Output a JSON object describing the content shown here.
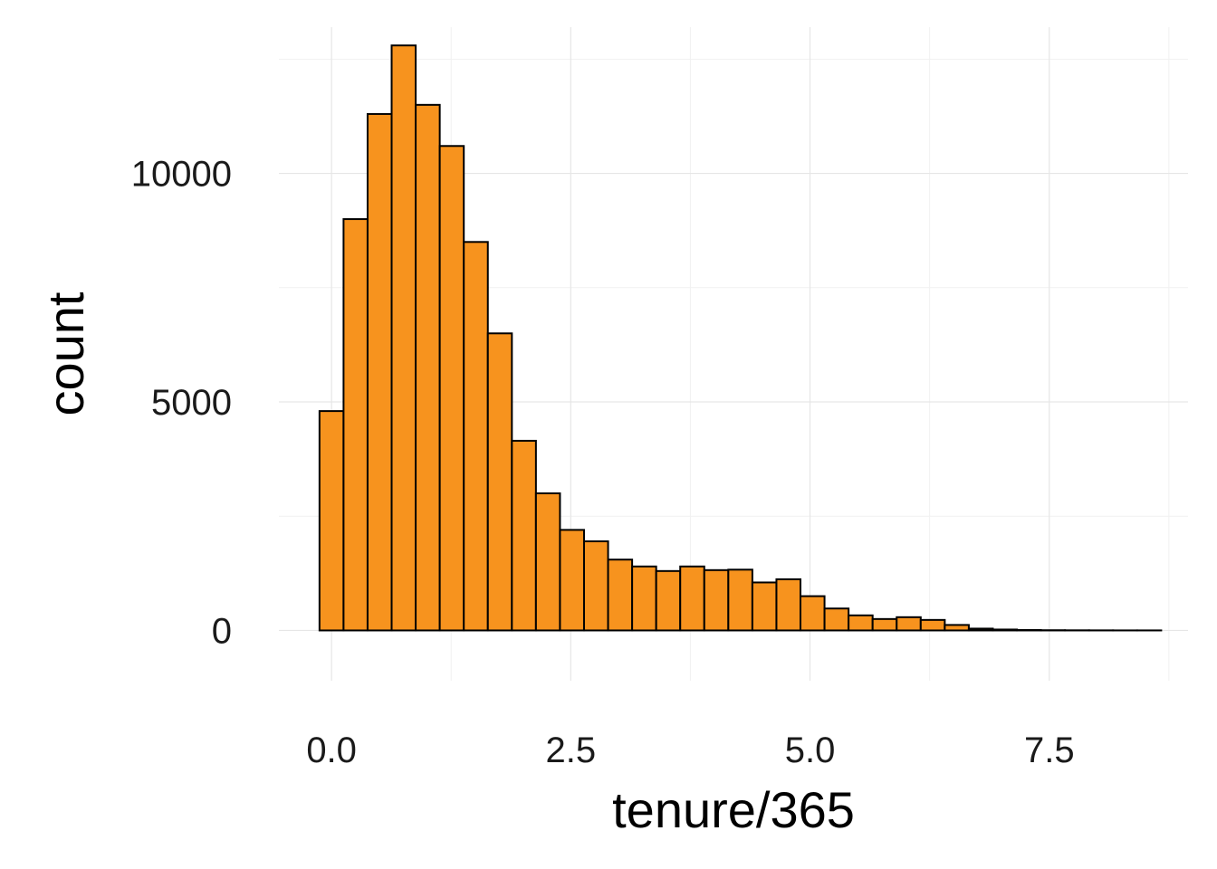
{
  "chart_data": {
    "type": "bar",
    "subtype": "histogram",
    "xlabel": "tenure/365",
    "ylabel": "count",
    "xlim": [
      -0.55,
      8.95
    ],
    "ylim": [
      -1100,
      13200
    ],
    "x_major_ticks": [
      0.0,
      2.5,
      5.0,
      7.5
    ],
    "x_tick_labels": [
      "0.0",
      "2.5",
      "5.0",
      "7.5"
    ],
    "x_minor_ticks": [
      1.25,
      3.75,
      6.25,
      8.75
    ],
    "y_major_ticks": [
      0,
      5000,
      10000
    ],
    "y_tick_labels": [
      "0",
      "5000",
      "10000"
    ],
    "y_minor_ticks": [
      2500,
      7500,
      12500
    ],
    "grid": true,
    "legend": "none",
    "bar_color": "#F7931E",
    "bar_edge_color": "#000000",
    "bins": {
      "width": 0.2513,
      "start": -0.1257,
      "values": [
        4800,
        9000,
        11300,
        12800,
        11500,
        10600,
        8500,
        6500,
        4150,
        3000,
        2200,
        1950,
        1550,
        1400,
        1300,
        1400,
        1320,
        1330,
        1050,
        1120,
        750,
        480,
        330,
        250,
        290,
        230,
        120,
        40,
        20,
        10,
        5,
        3,
        2,
        1,
        1
      ]
    }
  }
}
